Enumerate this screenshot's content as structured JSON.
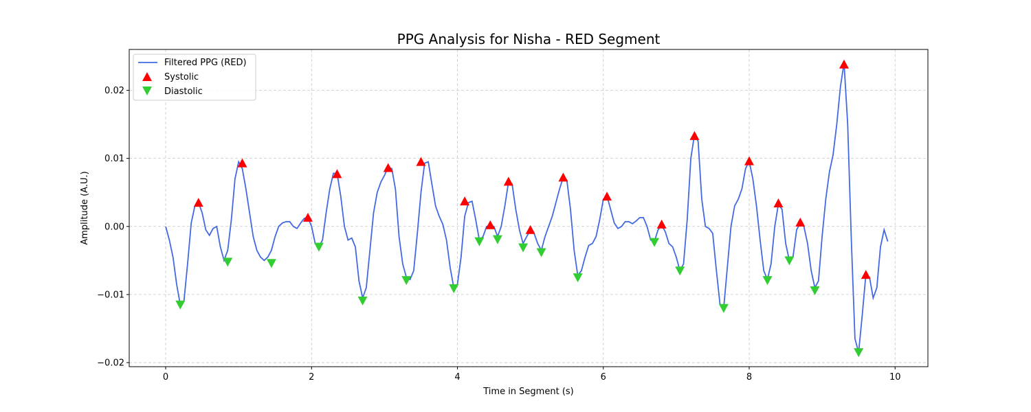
{
  "chart_data": {
    "type": "line",
    "title": "PPG Analysis for Nisha - RED Segment",
    "xlabel": "Time in Segment (s)",
    "ylabel": "Amplitude (A.U.)",
    "xlim": [
      -0.5,
      10.45
    ],
    "ylim": [
      -0.0206,
      0.026
    ],
    "xticks": [
      0,
      2,
      4,
      6,
      8,
      10
    ],
    "xtick_labels": [
      "0",
      "2",
      "4",
      "6",
      "8",
      "10"
    ],
    "yticks": [
      -0.02,
      -0.01,
      0.0,
      0.01,
      0.02
    ],
    "ytick_labels": [
      "−0.02",
      "−0.01",
      "0.00",
      "0.01",
      "0.02"
    ],
    "grid": true,
    "legend_position": "top-left",
    "colors": {
      "line": "#4169e1",
      "systolic": "#ff0000",
      "diastolic": "#32cd32"
    },
    "series": [
      {
        "name": "Filtered PPG (RED)",
        "kind": "line",
        "x": [
          0.0,
          0.05,
          0.1,
          0.15,
          0.2,
          0.25,
          0.3,
          0.35,
          0.4,
          0.45,
          0.5,
          0.55,
          0.6,
          0.65,
          0.7,
          0.75,
          0.8,
          0.85,
          0.9,
          0.95,
          1.0,
          1.05,
          1.1,
          1.15,
          1.2,
          1.25,
          1.3,
          1.35,
          1.4,
          1.45,
          1.5,
          1.55,
          1.6,
          1.65,
          1.7,
          1.75,
          1.8,
          1.85,
          1.9,
          1.95,
          2.0,
          2.05,
          2.1,
          2.15,
          2.2,
          2.25,
          2.3,
          2.35,
          2.4,
          2.45,
          2.5,
          2.55,
          2.6,
          2.65,
          2.7,
          2.75,
          2.8,
          2.85,
          2.9,
          2.95,
          3.0,
          3.05,
          3.1,
          3.15,
          3.2,
          3.25,
          3.3,
          3.35,
          3.4,
          3.45,
          3.5,
          3.55,
          3.6,
          3.65,
          3.7,
          3.75,
          3.8,
          3.85,
          3.9,
          3.95,
          4.0,
          4.05,
          4.1,
          4.15,
          4.2,
          4.25,
          4.3,
          4.35,
          4.4,
          4.45,
          4.5,
          4.55,
          4.6,
          4.65,
          4.7,
          4.75,
          4.8,
          4.85,
          4.9,
          4.95,
          5.0,
          5.05,
          5.1,
          5.15,
          5.2,
          5.25,
          5.3,
          5.35,
          5.4,
          5.45,
          5.5,
          5.55,
          5.6,
          5.65,
          5.7,
          5.75,
          5.8,
          5.85,
          5.9,
          5.95,
          6.0,
          6.05,
          6.1,
          6.15,
          6.2,
          6.25,
          6.3,
          6.35,
          6.4,
          6.45,
          6.5,
          6.55,
          6.6,
          6.65,
          6.7,
          6.75,
          6.8,
          6.85,
          6.9,
          6.95,
          7.0,
          7.05,
          7.1,
          7.15,
          7.2,
          7.25,
          7.3,
          7.35,
          7.4,
          7.45,
          7.5,
          7.55,
          7.6,
          7.65,
          7.7,
          7.75,
          7.8,
          7.85,
          7.9,
          7.95,
          8.0,
          8.05,
          8.1,
          8.15,
          8.2,
          8.25,
          8.3,
          8.35,
          8.4,
          8.45,
          8.5,
          8.55,
          8.6,
          8.65,
          8.7,
          8.75,
          8.8,
          8.85,
          8.9,
          8.95,
          9.0,
          9.05,
          9.1,
          9.15,
          9.2,
          9.25,
          9.3,
          9.35,
          9.4,
          9.45,
          9.5,
          9.55,
          9.6,
          9.65,
          9.7,
          9.75,
          9.8,
          9.85,
          9.9
        ],
        "y": [
          0.0,
          -0.002,
          -0.0045,
          -0.0085,
          -0.0115,
          -0.011,
          -0.0055,
          0.0005,
          0.003,
          0.0035,
          0.002,
          -0.0005,
          -0.0013,
          -0.0003,
          0.0,
          -0.003,
          -0.005,
          -0.0035,
          0.001,
          0.007,
          0.0095,
          0.0085,
          0.0055,
          0.002,
          -0.0015,
          -0.0035,
          -0.0045,
          -0.005,
          -0.0045,
          -0.0035,
          -0.0015,
          0.0,
          0.0005,
          0.0007,
          0.0007,
          0.0,
          -0.0003,
          0.0005,
          0.0012,
          0.0013,
          0.0,
          -0.0025,
          -0.003,
          -0.002,
          0.002,
          0.0055,
          0.0078,
          0.0078,
          0.0045,
          0.0,
          -0.002,
          -0.0017,
          -0.003,
          -0.008,
          -0.0105,
          -0.009,
          -0.0035,
          0.002,
          0.005,
          0.0065,
          0.0075,
          0.0087,
          0.0085,
          0.0055,
          -0.0015,
          -0.0055,
          -0.0075,
          -0.0078,
          -0.0065,
          -0.001,
          0.005,
          0.0093,
          0.0095,
          0.0062,
          0.003,
          0.0015,
          0.0003,
          -0.002,
          -0.006,
          -0.009,
          -0.0085,
          -0.0045,
          0.0015,
          0.0035,
          0.0037,
          0.001,
          -0.002,
          -0.0015,
          0.0,
          0.0002,
          0.0,
          -0.0015,
          0.0,
          0.003,
          0.0065,
          0.0062,
          0.0025,
          -0.0005,
          -0.0025,
          -0.0015,
          -0.0005,
          -0.001,
          -0.0025,
          -0.0035,
          -0.0015,
          0.0,
          0.0015,
          0.0035,
          0.0055,
          0.0072,
          0.0068,
          0.0025,
          -0.0035,
          -0.0072,
          -0.0065,
          -0.0045,
          -0.0028,
          -0.0025,
          -0.0015,
          0.001,
          0.004,
          0.0045,
          0.0025,
          0.0005,
          -0.0003,
          0.0,
          0.0007,
          0.0007,
          0.0004,
          0.0008,
          0.0013,
          0.0013,
          0.0,
          -0.002,
          -0.0022,
          -0.0005,
          0.0002,
          -0.0008,
          -0.0025,
          -0.003,
          -0.0045,
          -0.0065,
          -0.0055,
          0.001,
          0.01,
          0.0135,
          0.0125,
          0.004,
          0.0,
          -0.0003,
          -0.001,
          -0.0065,
          -0.0115,
          -0.012,
          -0.006,
          0.0,
          0.003,
          0.004,
          0.0055,
          0.0085,
          0.0096,
          0.007,
          0.003,
          -0.002,
          -0.0065,
          -0.0078,
          -0.0055,
          0.0,
          0.0033,
          0.0025,
          -0.0025,
          -0.005,
          -0.0045,
          -0.0005,
          0.0005,
          0.0,
          -0.0025,
          -0.0065,
          -0.009,
          -0.008,
          -0.0015,
          0.004,
          0.008,
          0.0105,
          0.015,
          0.0205,
          0.024,
          0.015,
          -0.002,
          -0.0165,
          -0.0185,
          -0.013,
          -0.007,
          -0.0075,
          -0.0105,
          -0.009,
          -0.003,
          -0.0005,
          -0.0022
        ]
      },
      {
        "name": "Systolic",
        "kind": "markers",
        "marker": "triangle-up",
        "x": [
          0.45,
          1.05,
          1.95,
          2.35,
          3.05,
          3.5,
          4.1,
          4.45,
          4.7,
          5.0,
          5.45,
          6.05,
          6.8,
          7.25,
          8.0,
          8.4,
          8.7,
          9.3,
          9.6
        ],
        "y": [
          0.0035,
          0.0093,
          0.0013,
          0.0077,
          0.0086,
          0.0095,
          0.0037,
          0.0002,
          0.0066,
          -0.0005,
          0.0072,
          0.0044,
          0.0003,
          0.0133,
          0.0096,
          0.0034,
          0.0006,
          0.0238,
          -0.0071
        ]
      },
      {
        "name": "Diastolic",
        "kind": "markers",
        "marker": "triangle-down",
        "x": [
          0.2,
          0.85,
          1.45,
          2.1,
          2.7,
          3.3,
          3.95,
          4.3,
          4.55,
          4.9,
          5.15,
          5.65,
          6.7,
          7.05,
          7.65,
          8.25,
          8.55,
          8.9,
          9.5
        ],
        "y": [
          -0.0115,
          -0.0052,
          -0.0054,
          -0.003,
          -0.0109,
          -0.0079,
          -0.0091,
          -0.0022,
          -0.0019,
          -0.0031,
          -0.0038,
          -0.0075,
          -0.0023,
          -0.0065,
          -0.012,
          -0.0079,
          -0.005,
          -0.0094,
          -0.0185
        ]
      }
    ]
  }
}
